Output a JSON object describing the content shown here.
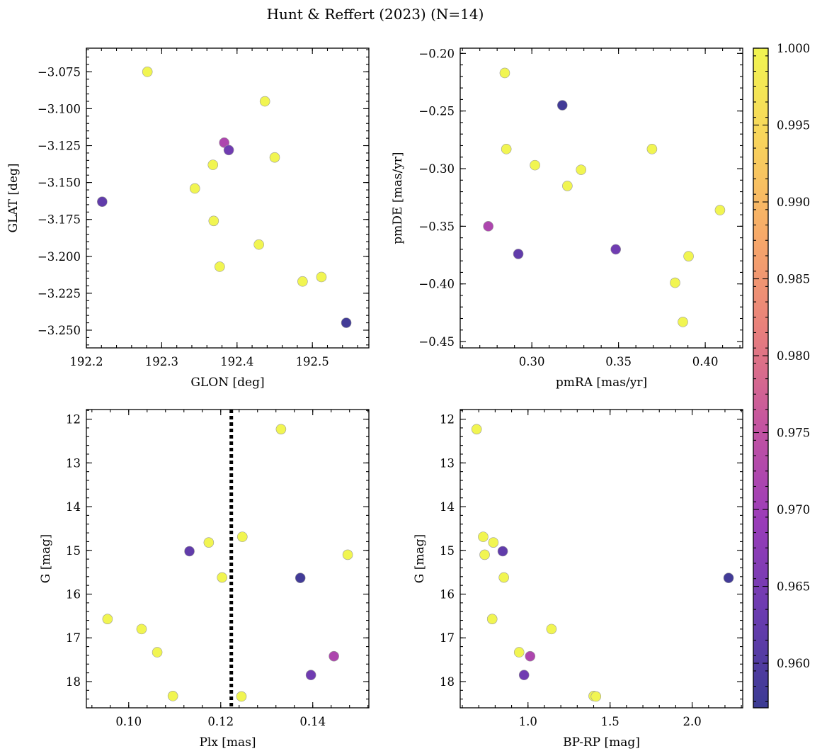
{
  "figure": {
    "title": "Hunt & Reffert (2023) (N=14)"
  },
  "colormap": {
    "name": "plasma",
    "stops": [
      "#3b3b93",
      "#6a3cb0",
      "#9b3cb9",
      "#c454a0",
      "#e87f7c",
      "#f7a969",
      "#f8d35c",
      "#f1f551"
    ],
    "vmin": 0.9571,
    "vmax": 1.0,
    "ticks": [
      0.96,
      0.965,
      0.97,
      0.975,
      0.98,
      0.985,
      0.99,
      0.995,
      1.0
    ],
    "tick_labels": [
      "0.960",
      "0.965",
      "0.970",
      "0.975",
      "0.980",
      "0.985",
      "0.990",
      "0.995",
      "1.000"
    ]
  },
  "chart_data": [
    {
      "id": "glon-glat",
      "type": "scatter",
      "xlabel": "GLON [deg]",
      "ylabel": "GLAT [deg]",
      "xlim": [
        192.2,
        192.575
      ],
      "ylim": [
        -3.262,
        -3.059
      ],
      "y_inverted": false,
      "xticks": [
        192.2,
        192.3,
        192.4,
        192.5
      ],
      "xtick_labels": [
        "192.2",
        "192.3",
        "192.4",
        "192.5"
      ],
      "yticks": [
        -3.075,
        -3.1,
        -3.125,
        -3.15,
        -3.175,
        -3.2,
        -3.225,
        -3.25
      ],
      "ytick_labels": [
        "−3.075",
        "−3.100",
        "−3.125",
        "−3.150",
        "−3.175",
        "−3.200",
        "−3.225",
        "−3.250"
      ],
      "x": [
        192.281,
        192.437,
        192.383,
        192.389,
        192.368,
        192.45,
        192.221,
        192.344,
        192.369,
        192.429,
        192.377,
        192.487,
        192.512,
        192.545
      ],
      "y": [
        -3.075,
        -3.095,
        -3.123,
        -3.128,
        -3.138,
        -3.133,
        -3.163,
        -3.154,
        -3.176,
        -3.192,
        -3.207,
        -3.217,
        -3.214,
        -3.245
      ],
      "probability": [
        1.0,
        1.0,
        0.972,
        0.964,
        1.0,
        1.0,
        0.962,
        1.0,
        1.0,
        1.0,
        1.0,
        1.0,
        1.0,
        0.958
      ]
    },
    {
      "id": "pmra-pmde",
      "type": "scatter",
      "xlabel": "pmRA [mas/yr]",
      "ylabel": "pmDE [mas/yr]",
      "xlim": [
        0.2587,
        0.4216
      ],
      "ylim": [
        -0.4555,
        -0.1955
      ],
      "y_inverted": false,
      "xticks": [
        0.3,
        0.35,
        0.4
      ],
      "xtick_labels": [
        "0.30",
        "0.35",
        "0.40"
      ],
      "yticks": [
        -0.2,
        -0.25,
        -0.3,
        -0.35,
        -0.4,
        -0.45
      ],
      "ytick_labels": [
        "−0.20",
        "−0.25",
        "−0.30",
        "−0.35",
        "−0.40",
        "−0.45"
      ],
      "x": [
        0.2844,
        0.3176,
        0.2853,
        0.3018,
        0.3284,
        0.3205,
        0.3693,
        0.4085,
        0.2749,
        0.2922,
        0.3484,
        0.3904,
        0.3826,
        0.3871
      ],
      "y": [
        -0.217,
        -0.245,
        -0.283,
        -0.297,
        -0.301,
        -0.315,
        -0.283,
        -0.336,
        -0.35,
        -0.374,
        -0.37,
        -0.376,
        -0.399,
        -0.433
      ],
      "probability": [
        1.0,
        0.958,
        1.0,
        1.0,
        1.0,
        1.0,
        1.0,
        1.0,
        0.972,
        0.962,
        0.964,
        1.0,
        1.0,
        1.0
      ]
    },
    {
      "id": "plx-g",
      "type": "scatter",
      "xlabel": "Plx [mas]",
      "ylabel": "G [mag]",
      "xlim": [
        0.0908,
        0.1522
      ],
      "ylim": [
        11.78,
        18.6
      ],
      "y_inverted": true,
      "xticks": [
        0.1,
        0.12,
        0.14
      ],
      "xtick_labels": [
        "0.10",
        "0.12",
        "0.14"
      ],
      "yticks": [
        12,
        13,
        14,
        15,
        16,
        17,
        18
      ],
      "ytick_labels": [
        "12",
        "13",
        "14",
        "15",
        "16",
        "17",
        "18"
      ],
      "reference_line": {
        "x": 0.1223,
        "style": "dotted"
      },
      "x": [
        0.1331,
        0.1132,
        0.1174,
        0.1247,
        0.1476,
        0.1373,
        0.1203,
        0.0954,
        0.1028,
        0.1062,
        0.1446,
        0.1396,
        0.1096,
        0.1245
      ],
      "y": [
        12.23,
        15.02,
        14.82,
        14.69,
        15.1,
        15.63,
        15.62,
        16.57,
        16.8,
        17.33,
        17.42,
        17.85,
        18.33,
        18.34
      ],
      "probability": [
        1.0,
        0.962,
        1.0,
        1.0,
        1.0,
        0.958,
        1.0,
        1.0,
        1.0,
        1.0,
        0.972,
        0.964,
        1.0,
        1.0
      ]
    },
    {
      "id": "bprp-g",
      "type": "scatter",
      "xlabel": "BP-RP [mag]",
      "ylabel": "G [mag]",
      "xlim": [
        0.587,
        2.308
      ],
      "ylim": [
        11.78,
        18.6
      ],
      "y_inverted": true,
      "xticks": [
        1.0,
        1.5,
        2.0
      ],
      "xtick_labels": [
        "1.0",
        "1.5",
        "2.0"
      ],
      "yticks": [
        12,
        13,
        14,
        15,
        16,
        17,
        18
      ],
      "ytick_labels": [
        "12",
        "13",
        "14",
        "15",
        "16",
        "17",
        "18"
      ],
      "x": [
        0.687,
        0.727,
        0.789,
        0.736,
        0.846,
        0.853,
        0.782,
        1.143,
        0.946,
        1.013,
        0.976,
        1.4,
        1.414,
        2.222
      ],
      "y": [
        12.23,
        14.69,
        14.82,
        15.1,
        15.02,
        15.62,
        16.57,
        16.8,
        17.33,
        17.42,
        17.85,
        18.33,
        18.34,
        15.63
      ],
      "probability": [
        1.0,
        1.0,
        1.0,
        1.0,
        0.962,
        1.0,
        1.0,
        1.0,
        1.0,
        0.972,
        0.964,
        1.0,
        1.0,
        0.958
      ]
    }
  ]
}
